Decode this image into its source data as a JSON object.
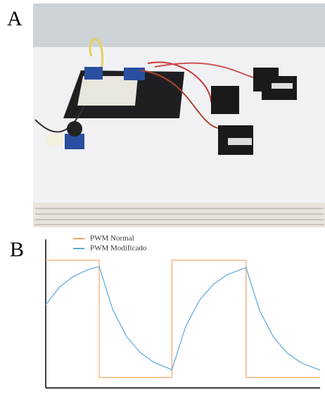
{
  "figure": {
    "labels": [
      "A",
      "B"
    ]
  },
  "chart_data": {
    "type": "line",
    "xlim": [
      0,
      1
    ],
    "ylim": [
      0,
      1
    ],
    "series": [
      {
        "name": "PWM Normal",
        "color": "#f0a868",
        "x": [
          0,
          0.195,
          0.195,
          0.46,
          0.46,
          0.73,
          0.73,
          1
        ],
        "values": [
          0.86,
          0.86,
          0.07,
          0.07,
          0.86,
          0.86,
          0.07,
          0.07
        ]
      },
      {
        "name": "PWM Modificado",
        "color": "#55a8d8",
        "x": [
          0,
          0.05,
          0.1,
          0.15,
          0.195,
          0.245,
          0.295,
          0.345,
          0.395,
          0.46,
          0.51,
          0.56,
          0.61,
          0.66,
          0.73,
          0.78,
          0.83,
          0.88,
          0.93,
          1
        ],
        "values": [
          0.56,
          0.678,
          0.75,
          0.793,
          0.817,
          0.523,
          0.345,
          0.237,
          0.171,
          0.123,
          0.413,
          0.589,
          0.696,
          0.761,
          0.81,
          0.519,
          0.342,
          0.235,
          0.17,
          0.12
        ]
      }
    ]
  }
}
